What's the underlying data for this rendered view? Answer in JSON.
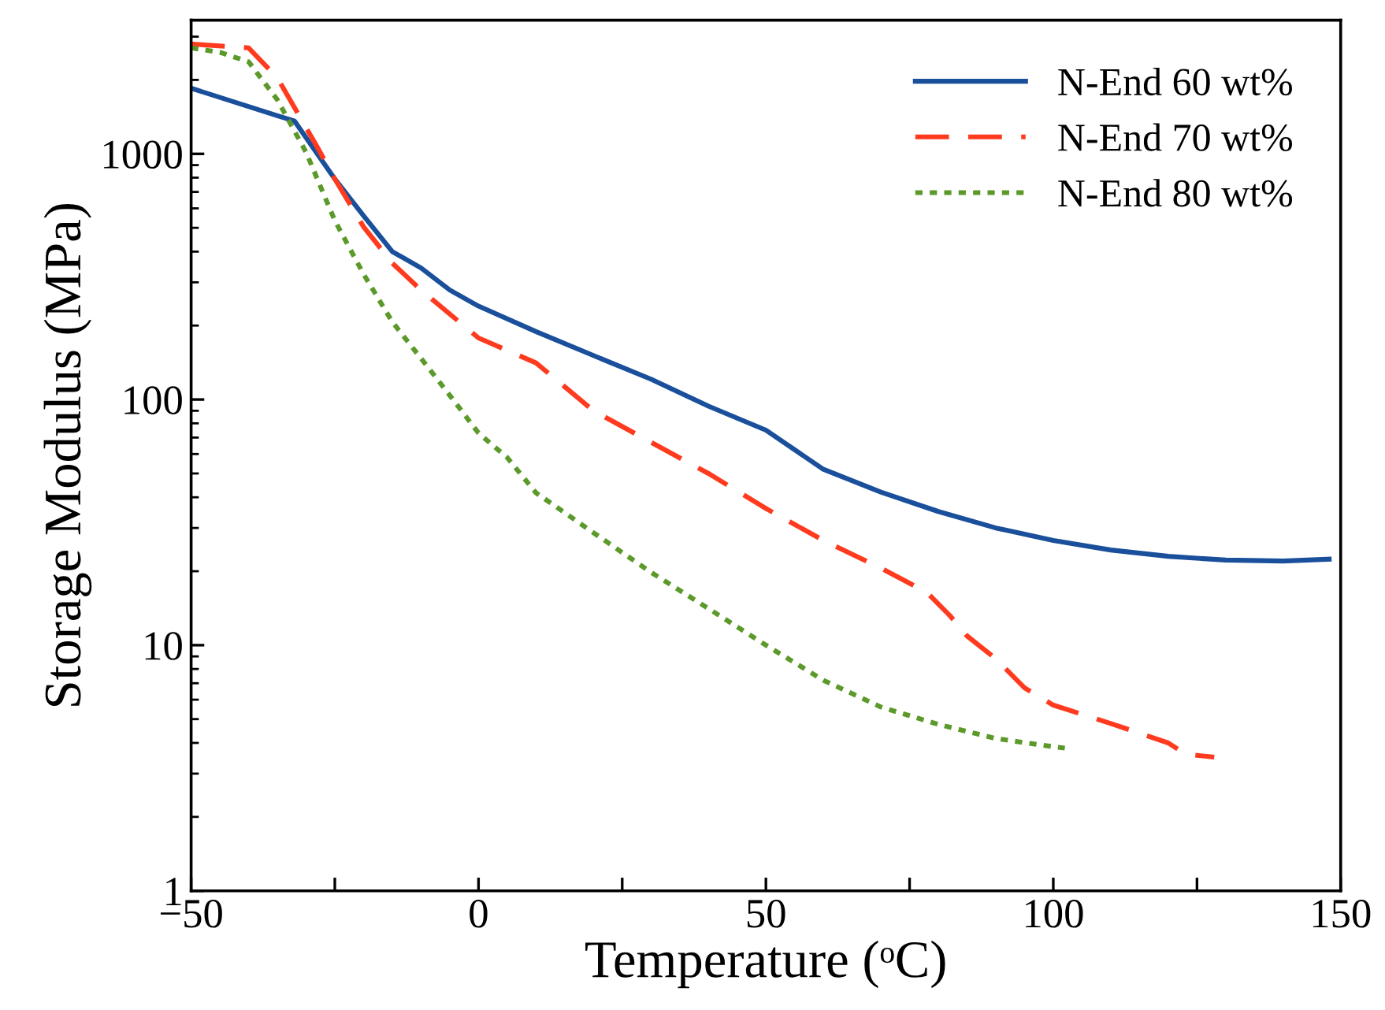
{
  "chart_data": {
    "type": "line",
    "xlabel": "Temperature (ᵒC)",
    "ylabel": "Storage Modulus (MPa)",
    "xlim": [
      -50,
      150
    ],
    "ylim": [
      1,
      3500
    ],
    "log": "y",
    "xticks": [
      -50,
      {
        "value": -25,
        "label": null
      },
      0,
      {
        "value": 25,
        "label": null
      },
      50,
      {
        "value": 75,
        "label": null
      },
      100,
      {
        "value": 125,
        "label": null
      },
      150
    ],
    "yticks": [
      1,
      10,
      100,
      1000
    ],
    "grid": false,
    "legend": "top right",
    "series": [
      {
        "name": "N-End 60 wt%",
        "color": "#1a4f9c",
        "line_style": "solid",
        "x": [
          -50,
          -35,
          -32,
          -25,
          -20,
          -15,
          -10,
          -5,
          0,
          10,
          20,
          30,
          40,
          50,
          60,
          70,
          80,
          90,
          100,
          110,
          120,
          130,
          140,
          148
        ],
        "values": [
          1850,
          1430,
          1360,
          790,
          560,
          400,
          343,
          279,
          240,
          189,
          151,
          121,
          94,
          75,
          52,
          42,
          35,
          30,
          26.7,
          24.4,
          23,
          22.2,
          22,
          22.4
        ]
      },
      {
        "name": "N-End 70 wt%",
        "color": "#ff3b1f",
        "line_style": "dashed",
        "x": [
          -50,
          -40,
          -35,
          -32,
          -28,
          -25,
          -20,
          -15,
          -10,
          0,
          10,
          20,
          30,
          40,
          50,
          60,
          70,
          78,
          82,
          85,
          90,
          95,
          100,
          110,
          120,
          123,
          128
        ],
        "values": [
          2800,
          2700,
          2040,
          1540,
          1060,
          790,
          505,
          359,
          279,
          178,
          141,
          90,
          67,
          50,
          36,
          26.7,
          20.6,
          16.4,
          13.2,
          10.9,
          8.8,
          6.7,
          5.7,
          4.8,
          4.0,
          3.6,
          3.5
        ]
      },
      {
        "name": "N-End 80 wt%",
        "color": "#5b9a2a",
        "line_style": "dotted",
        "x": [
          -50,
          -45,
          -40,
          -35,
          -30,
          -25,
          -20,
          -15,
          -10,
          -5,
          0,
          5,
          10,
          20,
          30,
          40,
          50,
          60,
          70,
          80,
          90,
          100,
          102
        ],
        "values": [
          2700,
          2590,
          2370,
          1660,
          1015,
          535,
          324,
          207,
          147,
          104,
          73,
          58,
          41.7,
          28.7,
          19.8,
          14.1,
          10,
          7.2,
          5.6,
          4.76,
          4.17,
          3.86,
          3.81
        ]
      }
    ]
  }
}
